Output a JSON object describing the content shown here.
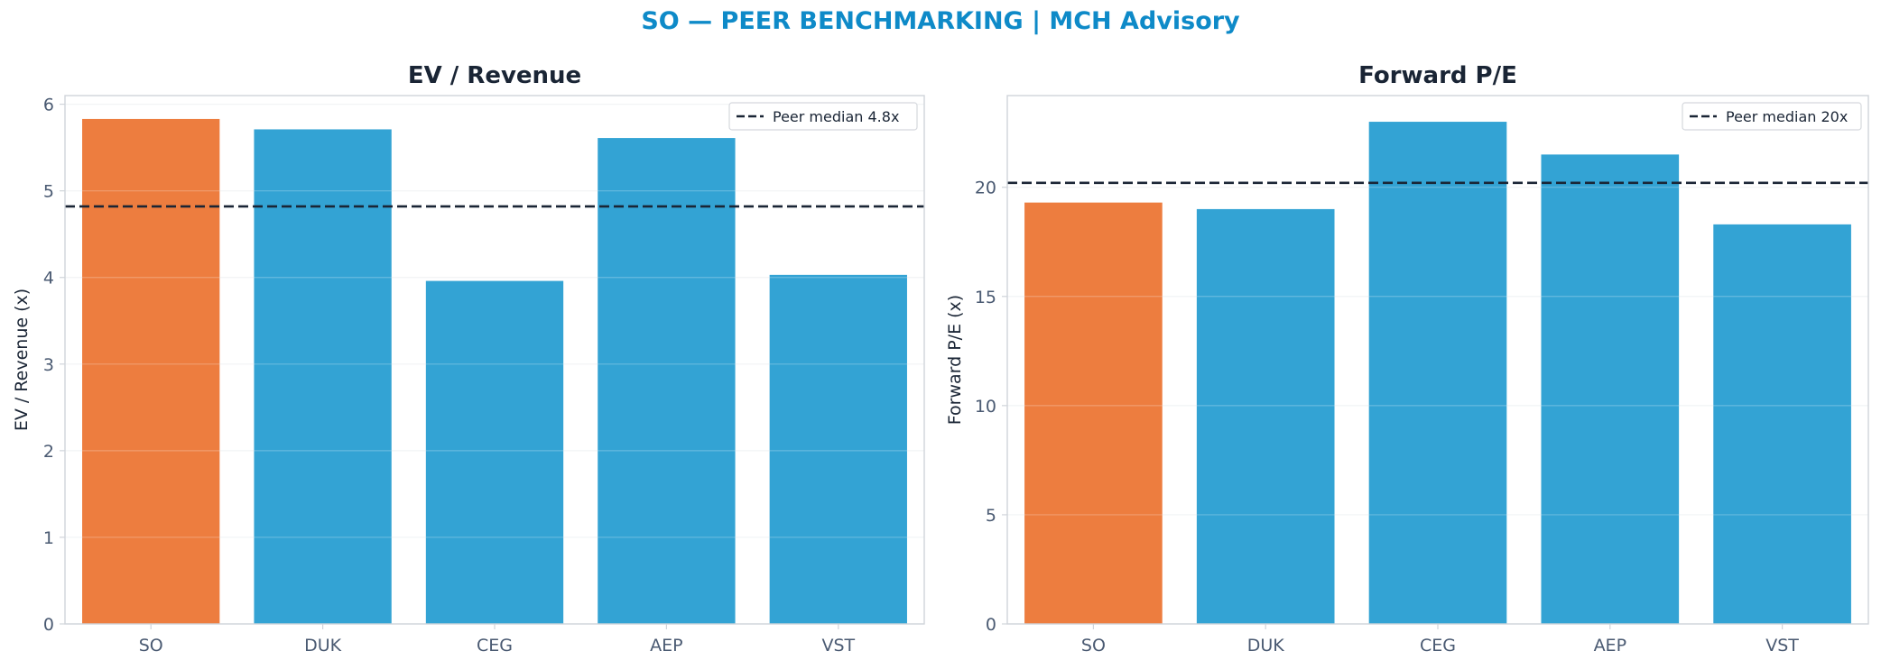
{
  "suptitle": "SO — PEER BENCHMARKING | MCH Advisory",
  "colors": {
    "highlight": "#ed7d3f",
    "peer": "#33a3d4",
    "median_line": "#1a2535",
    "title": "#1a2535",
    "suptitle": "#0e8ac8",
    "tick": "#4a5a72",
    "axis_frame": "#d0d4da",
    "grid": "#eef0f3"
  },
  "chart_data": [
    {
      "type": "bar",
      "title": "EV / Revenue",
      "xlabel": "",
      "ylabel": "EV / Revenue (x)",
      "categories": [
        "SO",
        "DUK",
        "CEG",
        "AEP",
        "VST"
      ],
      "values": [
        5.83,
        5.71,
        3.96,
        5.61,
        4.03
      ],
      "highlight": "SO",
      "ylim": [
        0,
        6.1
      ],
      "yticks": [
        "0",
        "1",
        "2",
        "3",
        "4",
        "5",
        "6"
      ],
      "ytick_values": [
        0,
        1,
        2,
        3,
        4,
        5,
        6
      ],
      "reference_line": {
        "value": 4.82,
        "label": "Peer median 4.8x",
        "style": "dashed"
      },
      "legend": "top-right",
      "grid": true
    },
    {
      "type": "bar",
      "title": "Forward P/E",
      "xlabel": "",
      "ylabel": "Forward P/E (x)",
      "categories": [
        "SO",
        "DUK",
        "CEG",
        "AEP",
        "VST"
      ],
      "values": [
        19.3,
        19.0,
        23.0,
        21.5,
        18.3
      ],
      "highlight": "SO",
      "ylim": [
        0,
        24.2
      ],
      "yticks": [
        "0",
        "5",
        "10",
        "15",
        "20"
      ],
      "ytick_values": [
        0,
        5,
        10,
        15,
        20
      ],
      "reference_line": {
        "value": 20.2,
        "label": "Peer median 20x",
        "style": "dashed"
      },
      "legend": "top-right",
      "grid": true
    }
  ]
}
